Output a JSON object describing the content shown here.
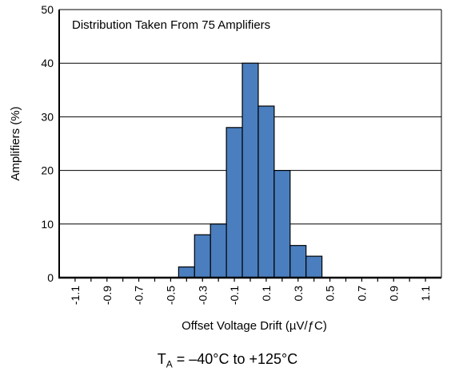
{
  "chart_data": {
    "type": "bar",
    "annotation": "Distribution Taken From 75 Amplifiers",
    "xlabel": "Offset Voltage Drift (µV/ƒC)",
    "ylabel": "Amplifiers (%)",
    "ylim": [
      0,
      50
    ],
    "yticks": [
      "0",
      "10",
      "20",
      "30",
      "40",
      "50"
    ],
    "xlim": [
      -1.2,
      1.2
    ],
    "xticks": [
      "-1.1",
      "-0.9",
      "-0.7",
      "-0.5",
      "-0.3",
      "-0.1",
      "0.1",
      "0.3",
      "0.5",
      "0.7",
      "0.9",
      "1.1"
    ],
    "xtick_values": [
      -1.1,
      -0.9,
      -0.7,
      -0.5,
      -0.3,
      -0.1,
      0.1,
      0.3,
      0.5,
      0.7,
      0.9,
      1.1
    ],
    "bin_width": 0.1,
    "bin_centers": [
      -0.4,
      -0.3,
      -0.2,
      -0.1,
      0.0,
      0.1,
      0.2,
      0.3,
      0.4
    ],
    "values": [
      2,
      8,
      10,
      28,
      40,
      32,
      20,
      6,
      4
    ],
    "grid": true,
    "bar_color": "#4a7ebf"
  },
  "condition": {
    "prefix": "T",
    "subscript": "A",
    "suffix": " = –40°C to +125°C"
  }
}
